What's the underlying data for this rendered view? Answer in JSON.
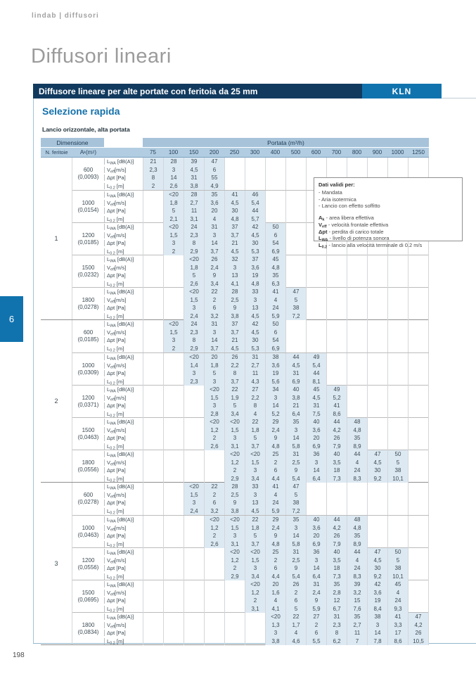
{
  "page": {
    "brand": "lindab | diffusori",
    "title": "Diffusori lineari",
    "page_number": "198",
    "side_tab": "6"
  },
  "banner": {
    "title": "Diffusore lineare per alte portate con feritoia da 25 mm",
    "code": "KLN"
  },
  "section": {
    "heading": "Selezione rapida",
    "subheading": "Lancio orizzontale, alta portata"
  },
  "info_box": {
    "title": "Dati validi per:",
    "conditions": [
      "- Mandata",
      "- Aria isotermica",
      "- Lancio con effetto soffitto"
    ],
    "legend": [
      {
        "sym": "A_{k}",
        "desc": "area libera effettiva"
      },
      {
        "sym": "V_{eff}",
        "desc": "velocità frontale effettiva"
      },
      {
        "sym": "Δpt",
        "desc": "perdita di carico totale"
      },
      {
        "sym": "L_{WA}",
        "desc": "livello di potenza sonora"
      },
      {
        "sym": "L_{0.2}",
        "desc": "lancio alla velocità terminale di 0.2 m/s"
      }
    ]
  },
  "table": {
    "header": {
      "dimensione": "Dimensione",
      "portata": "Portata (m^{3}/h)",
      "feritoie": "N. feritoie",
      "area": "A_{k} (m^{2})",
      "columns": [
        "75",
        "100",
        "150",
        "200",
        "250",
        "300",
        "400",
        "500",
        "600",
        "700",
        "800",
        "900",
        "1000",
        "1250"
      ]
    },
    "row_labels": [
      "L_{WA} [dB(A)]",
      "V_{eff}[m/s]",
      "Δpt [Pa]",
      "L_{0.2} [m]"
    ],
    "groups": [
      {
        "n": "1",
        "blocks": [
          {
            "dim": "600",
            "ak": "(0,0093)",
            "start": 0,
            "lwa": [
              "21",
              "28",
              "39",
              "47"
            ],
            "veff": [
              "2,3",
              "3",
              "4,5",
              "6"
            ],
            "dpt": [
              "8",
              "14",
              "31",
              "55"
            ],
            "l02": [
              "2",
              "2,6",
              "3,8",
              "4,9"
            ]
          },
          {
            "dim": "1000",
            "ak": "(0,0154)",
            "start": 1,
            "lwa": [
              "<20",
              "28",
              "35",
              "41",
              "46"
            ],
            "veff": [
              "1,8",
              "2,7",
              "3,6",
              "4,5",
              "5,4"
            ],
            "dpt": [
              "5",
              "11",
              "20",
              "30",
              "44"
            ],
            "l02": [
              "2,1",
              "3,1",
              "4",
              "4,8",
              "5,7"
            ]
          },
          {
            "dim": "1200",
            "ak": "(0,0185)",
            "start": 1,
            "lwa": [
              "<20",
              "24",
              "31",
              "37",
              "42",
              "50"
            ],
            "veff": [
              "1,5",
              "2,3",
              "3",
              "3,7",
              "4,5",
              "6"
            ],
            "dpt": [
              "3",
              "8",
              "14",
              "21",
              "30",
              "54"
            ],
            "l02": [
              "2",
              "2,9",
              "3,7",
              "4,5",
              "5,3",
              "6,9"
            ]
          },
          {
            "dim": "1500",
            "ak": "(0,0232)",
            "start": 2,
            "lwa": [
              "<20",
              "26",
              "32",
              "37",
              "45"
            ],
            "veff": [
              "1,8",
              "2,4",
              "3",
              "3,6",
              "4,8"
            ],
            "dpt": [
              "5",
              "9",
              "13",
              "19",
              "35"
            ],
            "l02": [
              "2,6",
              "3,4",
              "4,1",
              "4,8",
              "6,3"
            ]
          },
          {
            "dim": "1800",
            "ak": "(0,0278)",
            "start": 2,
            "lwa": [
              "<20",
              "22",
              "28",
              "33",
              "41",
              "47"
            ],
            "veff": [
              "1,5",
              "2",
              "2,5",
              "3",
              "4",
              "5"
            ],
            "dpt": [
              "3",
              "6",
              "9",
              "13",
              "24",
              "38"
            ],
            "l02": [
              "2,4",
              "3,2",
              "3,8",
              "4,5",
              "5,9",
              "7,2"
            ]
          }
        ]
      },
      {
        "n": "2",
        "blocks": [
          {
            "dim": "600",
            "ak": "(0,0185)",
            "start": 1,
            "lwa": [
              "<20",
              "24",
              "31",
              "37",
              "42",
              "50"
            ],
            "veff": [
              "1,5",
              "2,3",
              "3",
              "3,7",
              "4,5",
              "6"
            ],
            "dpt": [
              "3",
              "8",
              "14",
              "21",
              "30",
              "54"
            ],
            "l02": [
              "2",
              "2,9",
              "3,7",
              "4,5",
              "5,3",
              "6,9"
            ]
          },
          {
            "dim": "1000",
            "ak": "(0,0309)",
            "start": 2,
            "lwa": [
              "<20",
              "20",
              "26",
              "31",
              "38",
              "44",
              "49"
            ],
            "veff": [
              "1,4",
              "1,8",
              "2,2",
              "2,7",
              "3,6",
              "4,5",
              "5,4"
            ],
            "dpt": [
              "3",
              "5",
              "8",
              "11",
              "19",
              "31",
              "44"
            ],
            "l02": [
              "2,3",
              "3",
              "3,7",
              "4,3",
              "5,6",
              "6,9",
              "8,1"
            ]
          },
          {
            "dim": "1200",
            "ak": "(0,0371)",
            "start": 3,
            "lwa": [
              "<20",
              "22",
              "27",
              "34",
              "40",
              "45",
              "49"
            ],
            "veff": [
              "1,5",
              "1,9",
              "2,2",
              "3",
              "3,8",
              "4,5",
              "5,2"
            ],
            "dpt": [
              "3",
              "5",
              "8",
              "14",
              "21",
              "31",
              "41"
            ],
            "l02": [
              "2,8",
              "3,4",
              "4",
              "5,2",
              "6,4",
              "7,5",
              "8,6"
            ]
          },
          {
            "dim": "1500",
            "ak": "(0,0463)",
            "start": 3,
            "lwa": [
              "<20",
              "<20",
              "22",
              "29",
              "35",
              "40",
              "44",
              "48"
            ],
            "veff": [
              "1,2",
              "1,5",
              "1,8",
              "2,4",
              "3",
              "3,6",
              "4,2",
              "4,8"
            ],
            "dpt": [
              "2",
              "3",
              "5",
              "9",
              "14",
              "20",
              "26",
              "35"
            ],
            "l02": [
              "2,6",
              "3,1",
              "3,7",
              "4,8",
              "5,8",
              "6,9",
              "7,9",
              "8,9"
            ]
          },
          {
            "dim": "1800",
            "ak": "(0,0556)",
            "start": 4,
            "lwa": [
              "<20",
              "<20",
              "25",
              "31",
              "36",
              "40",
              "44",
              "47",
              "50"
            ],
            "veff": [
              "1,2",
              "1,5",
              "2",
              "2,5",
              "3",
              "3,5",
              "4",
              "4,5",
              "5"
            ],
            "dpt": [
              "2",
              "3",
              "6",
              "9",
              "14",
              "18",
              "24",
              "30",
              "38"
            ],
            "l02": [
              "2,9",
              "3,4",
              "4,4",
              "5,4",
              "6,4",
              "7,3",
              "8,3",
              "9,2",
              "10,1"
            ]
          }
        ]
      },
      {
        "n": "3",
        "blocks": [
          {
            "dim": "600",
            "ak": "(0,0278)",
            "start": 2,
            "lwa": [
              "<20",
              "22",
              "28",
              "33",
              "41",
              "47"
            ],
            "veff": [
              "1,5",
              "2",
              "2,5",
              "3",
              "4",
              "5"
            ],
            "dpt": [
              "3",
              "6",
              "9",
              "13",
              "24",
              "38"
            ],
            "l02": [
              "2,4",
              "3,2",
              "3,8",
              "4,5",
              "5,9",
              "7,2"
            ]
          },
          {
            "dim": "1000",
            "ak": "(0,0463)",
            "start": 3,
            "lwa": [
              "<20",
              "<20",
              "22",
              "29",
              "35",
              "40",
              "44",
              "48"
            ],
            "veff": [
              "1,2",
              "1,5",
              "1,8",
              "2,4",
              "3",
              "3,6",
              "4,2",
              "4,8"
            ],
            "dpt": [
              "2",
              "3",
              "5",
              "9",
              "14",
              "20",
              "26",
              "35"
            ],
            "l02": [
              "2,6",
              "3,1",
              "3,7",
              "4,8",
              "5,8",
              "6,9",
              "7,9",
              "8,9"
            ]
          },
          {
            "dim": "1200",
            "ak": "(0,0556)",
            "start": 4,
            "lwa": [
              "<20",
              "<20",
              "25",
              "31",
              "36",
              "40",
              "44",
              "47",
              "50"
            ],
            "veff": [
              "1,2",
              "1,5",
              "2",
              "2,5",
              "3",
              "3,5",
              "4",
              "4,5",
              "5"
            ],
            "dpt": [
              "2",
              "3",
              "6",
              "9",
              "14",
              "18",
              "24",
              "30",
              "38"
            ],
            "l02": [
              "2,9",
              "3,4",
              "4,4",
              "5,4",
              "6,4",
              "7,3",
              "8,3",
              "9,2",
              "10,1"
            ]
          },
          {
            "dim": "1500",
            "ak": "(0,0695)",
            "start": 5,
            "lwa": [
              "<20",
              "20",
              "26",
              "31",
              "35",
              "39",
              "42",
              "45"
            ],
            "veff": [
              "1,2",
              "1,6",
              "2",
              "2,4",
              "2,8",
              "3,2",
              "3,6",
              "4"
            ],
            "dpt": [
              "2",
              "4",
              "6",
              "9",
              "12",
              "15",
              "19",
              "24"
            ],
            "l02": [
              "3,1",
              "4,1",
              "5",
              "5,9",
              "6,7",
              "7,6",
              "8,4",
              "9,3"
            ]
          },
          {
            "dim": "1800",
            "ak": "(0,0834)",
            "start": 6,
            "lwa": [
              "<20",
              "22",
              "27",
              "31",
              "35",
              "38",
              "41",
              "47"
            ],
            "veff": [
              "1,3",
              "1,7",
              "2",
              "2,3",
              "2,7",
              "3",
              "3,3",
              "4,2"
            ],
            "dpt": [
              "3",
              "4",
              "6",
              "8",
              "11",
              "14",
              "17",
              "26"
            ],
            "l02": [
              "3,8",
              "4,6",
              "5,5",
              "6,2",
              "7",
              "7,8",
              "8,6",
              "10,5"
            ]
          }
        ]
      }
    ]
  },
  "colors": {
    "navy": "#123a5f",
    "blue": "#1173ae",
    "header_blue": "#a6c3da",
    "header_blue_light": "#b2cde1",
    "highlight": "#dde9f2"
  }
}
